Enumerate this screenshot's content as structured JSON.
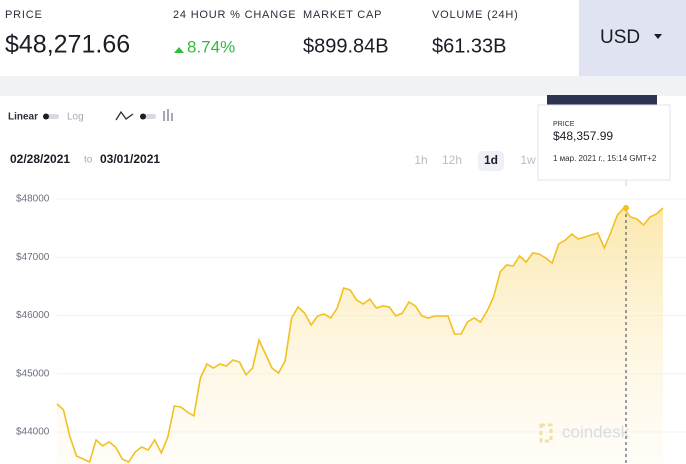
{
  "header": {
    "price": {
      "label": "PRICE",
      "value": "$48,271.66"
    },
    "change": {
      "label": "24 HOUR % CHANGE",
      "value": "8.74%"
    },
    "market_cap": {
      "label": "MARKET CAP",
      "value": "$899.84B"
    },
    "volume": {
      "label": "VOLUME (24H)",
      "value": "$61.33B"
    },
    "currency": "USD"
  },
  "controls": {
    "linear": "Linear",
    "log": "Log",
    "from": "02/28/2021",
    "to_word": "to",
    "to": "03/01/2021",
    "ranges": [
      "1h",
      "12h",
      "1d",
      "1w"
    ],
    "active_range": "1d"
  },
  "tooltip": {
    "label": "PRICE",
    "value": "$48,357.99",
    "time": "1 мар. 2021 г., 15:14 GMT+2"
  },
  "watermark": "coindesk",
  "chart_data": {
    "type": "line",
    "color": "#f2c01f",
    "grid": true,
    "ylim": [
      43450,
      48240
    ],
    "yticks": [
      {
        "value": 44000,
        "label": "$44000"
      },
      {
        "value": 45000,
        "label": "$45000"
      },
      {
        "value": 46000,
        "label": "$46000"
      },
      {
        "value": 47000,
        "label": "$47000"
      },
      {
        "value": 48000,
        "label": "$48000"
      }
    ],
    "values": [
      44481,
      44378,
      43914,
      43588,
      43536,
      43485,
      43863,
      43760,
      43828,
      43742,
      43536,
      43485,
      43657,
      43742,
      43691,
      43863,
      43640,
      43914,
      44446,
      44429,
      44343,
      44275,
      44927,
      45167,
      45099,
      45167,
      45133,
      45236,
      45202,
      44979,
      45099,
      45579,
      45339,
      45099,
      45013,
      45219,
      45957,
      46146,
      46043,
      45837,
      45991,
      46026,
      45957,
      46129,
      46472,
      46438,
      46266,
      46197,
      46283,
      46129,
      46163,
      46146,
      45991,
      46043,
      46232,
      46163,
      45991,
      45957,
      45991,
      45991,
      45991,
      45682,
      45682,
      45888,
      45957,
      45888,
      46077,
      46318,
      46747,
      46867,
      46850,
      47021,
      46918,
      47073,
      47056,
      46987,
      46901,
      47227,
      47296,
      47399,
      47313,
      47348,
      47382,
      47416,
      47159,
      47433,
      47725,
      47845,
      47691,
      47657,
      47554,
      47691,
      47742,
      47845
    ]
  }
}
